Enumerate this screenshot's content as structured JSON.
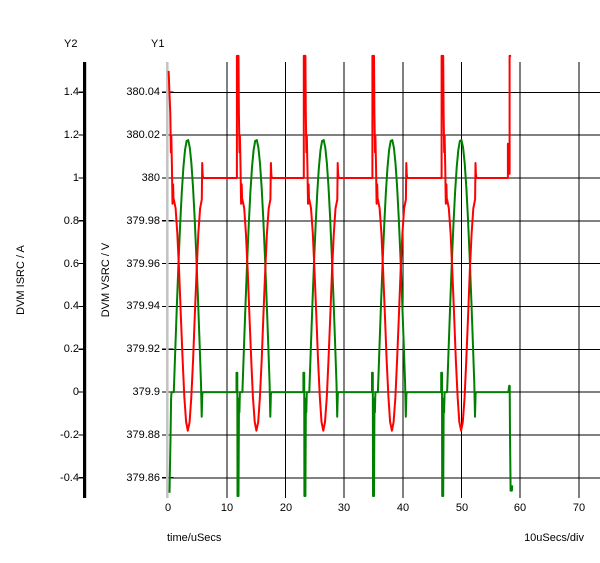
{
  "colors": {
    "background": "#ffffff",
    "grid": "#000000",
    "y1_axis_line": "#c4c4c4",
    "y2_axis_line": "#000000",
    "vsrc_trace": "#ff0000",
    "isrc_trace": "#008000",
    "text": "#000000"
  },
  "axes": {
    "y2": {
      "header": "Y2",
      "label": "DVM ISRC / A",
      "tick_labels": [
        "1.4",
        "1.2",
        "1",
        "0.8",
        "0.6",
        "0.4",
        "0.2",
        "0",
        "-0.2",
        "-0.4"
      ]
    },
    "y1": {
      "header": "Y1",
      "label": "DVM VSRC / V",
      "tick_labels": [
        "380.04",
        "380.02",
        "380",
        "379.98",
        "379.96",
        "379.94",
        "379.92",
        "379.9",
        "379.88",
        "379.86"
      ]
    },
    "x": {
      "label": "time/uSecs",
      "tick_labels": [
        "0",
        "10",
        "20",
        "30",
        "40",
        "50",
        "60",
        "70"
      ],
      "scale_note": "10uSecs/div"
    }
  },
  "chart_data": {
    "type": "line",
    "title": "",
    "grid": "on",
    "x_axis": {
      "label": "time/uSecs",
      "units_per_div": 10,
      "range_us": [
        0,
        73.6
      ]
    },
    "y1_axis": {
      "label": "DVM VSRC / V",
      "range": [
        379.851,
        380.054
      ],
      "ticks": [
        380.04,
        380.02,
        380,
        379.98,
        379.96,
        379.94,
        379.92,
        379.9,
        379.88,
        379.86
      ]
    },
    "y2_axis": {
      "label": "DVM ISRC / A",
      "range": [
        -0.49,
        1.542
      ],
      "ticks": [
        1.4,
        1.2,
        1,
        0.8,
        0.6,
        0.4,
        0.2,
        0,
        -0.2,
        -0.4
      ]
    },
    "pulse_times_us": [
      0.0,
      11.7,
      23.1,
      34.8,
      46.6,
      58.3
    ],
    "series": [
      {
        "name": "DVM VSRC",
        "axis": "y1",
        "color": "#ff0000",
        "description": "DC bus voltage: flat 380 V, clipped spike at each switching instant, then ripple dip",
        "base_v": 380.0,
        "start_v": 380.05,
        "spike_top_v": 380.057,
        "post_spike_steps_v": [
          380.03,
          380.012,
          380.02,
          380.006,
          379.988,
          379.997,
          379.99
        ],
        "dip": {
          "start_after_pulse_us": 0.94,
          "end_after_pulse_us": 5.72,
          "edge_v": 379.99,
          "min_v": 379.882
        },
        "recovery_tick_v": 380.007,
        "final_pulse": {
          "pre_tick_v": 380.016,
          "pre_level_v": 380.002
        }
      },
      {
        "name": "DVM ISRC",
        "axis": "y2",
        "color": "#008000",
        "description": "Resonant current: half-sine hump each period, deep negative spike at switching instant",
        "base_a": 0.0,
        "start_a": -0.47,
        "pre_spike_tick_a": 0.09,
        "spike_bottom_a": -0.485,
        "recovery_wiggle_a": [
          -0.03,
          -0.095
        ],
        "hump": {
          "start_after_pulse_us": 0.94,
          "end_after_pulse_us": 5.63,
          "peak_a": 1.18
        },
        "undershoot_a": -0.115,
        "final_pulse": {
          "tick_a": 0.03,
          "steps_a": [
            -0.2,
            -0.46,
            -0.435
          ]
        }
      }
    ]
  }
}
